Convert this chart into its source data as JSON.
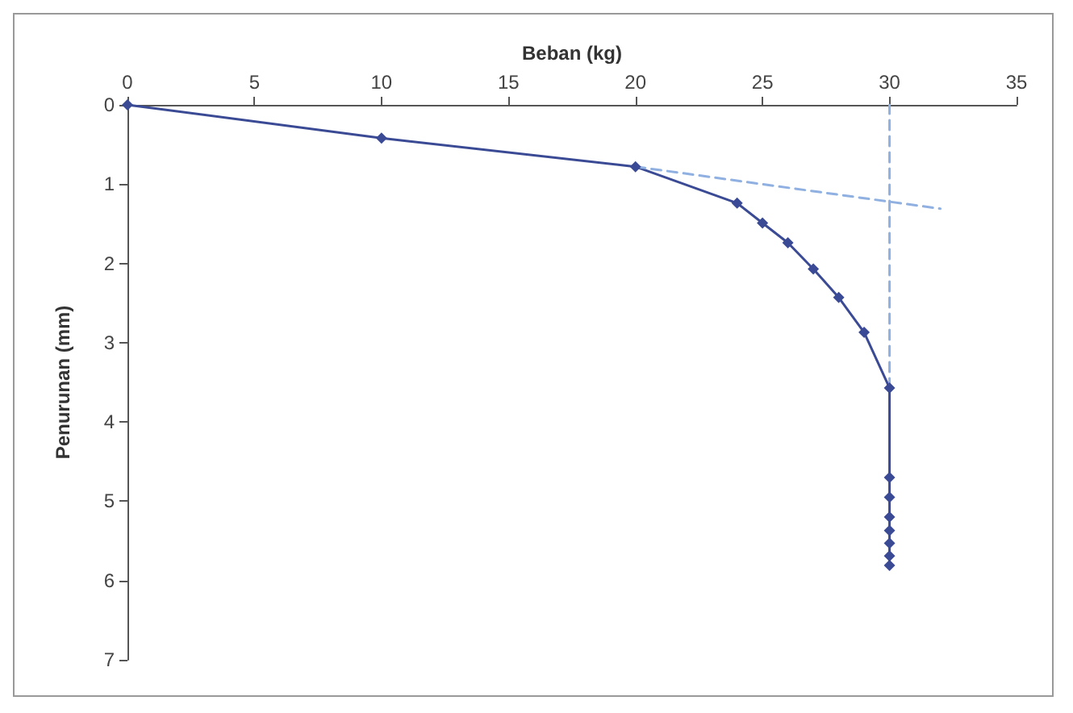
{
  "chart_data": {
    "type": "line",
    "xlabel": "Beban (kg)",
    "ylabel": "Penurunan (mm)",
    "xlim": [
      0,
      35
    ],
    "xticks": [
      0,
      5,
      10,
      15,
      20,
      25,
      30,
      35
    ],
    "ylim": [
      7,
      0
    ],
    "yticks": [
      0,
      1,
      2,
      3,
      4,
      5,
      6,
      7
    ],
    "grid": false,
    "series": [
      {
        "color": "#3b4a94",
        "marker": "diamond",
        "line_style": "solid",
        "x": [
          0,
          10,
          20,
          24,
          25,
          26,
          27,
          28,
          29,
          30,
          30,
          30,
          30,
          30,
          30,
          30,
          30
        ],
        "values": [
          0,
          0.42,
          0.78,
          1.24,
          1.49,
          1.74,
          2.07,
          2.43,
          2.87,
          3.57,
          4.7,
          4.95,
          5.2,
          5.37,
          5.53,
          5.69,
          5.81
        ]
      },
      {
        "color": "#8fb0e0",
        "marker": "none",
        "line_style": "dashed",
        "x": [
          20,
          32
        ],
        "values": [
          0.78,
          1.31
        ]
      },
      {
        "color": "#8fb0e0",
        "marker": "none",
        "line_style": "dashed",
        "x": [
          30,
          30
        ],
        "values": [
          3.57,
          0
        ]
      }
    ]
  }
}
